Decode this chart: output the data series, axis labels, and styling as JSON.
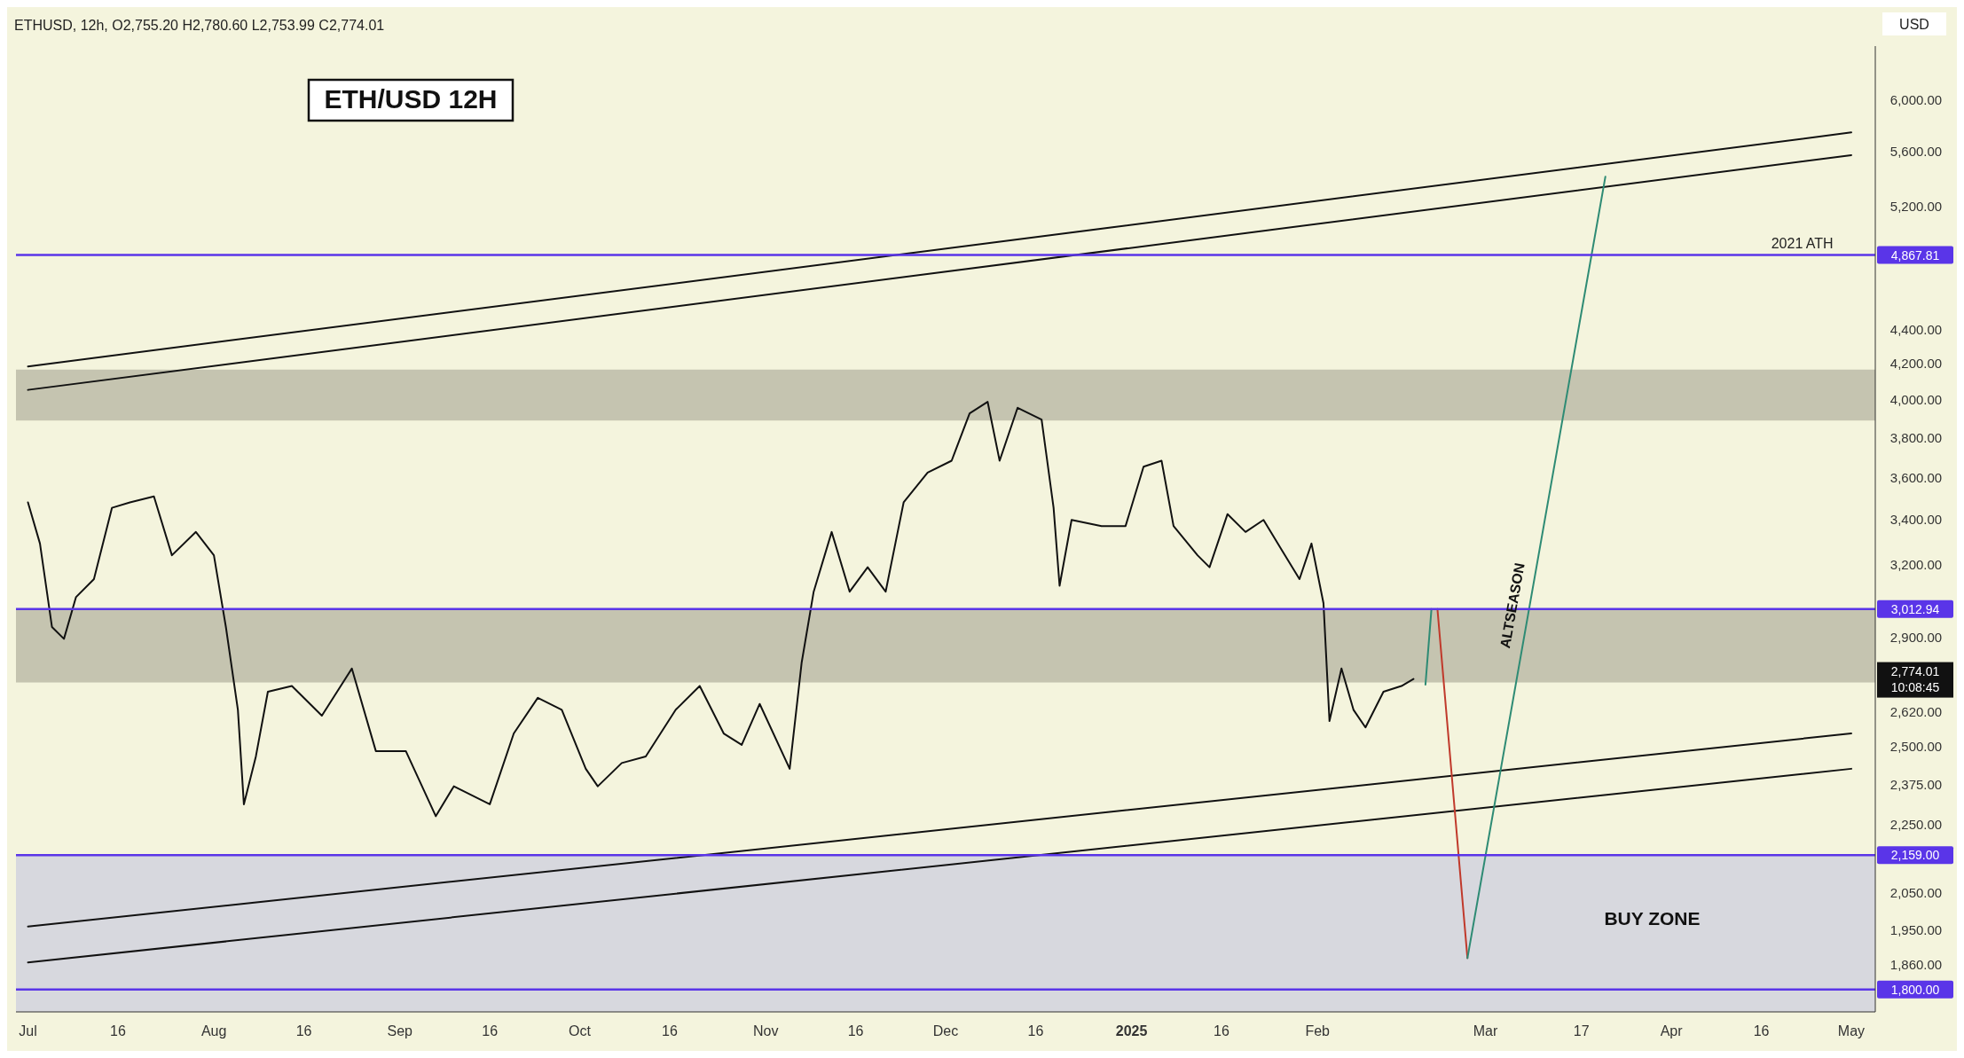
{
  "chart_data": {
    "type": "line",
    "title": "ETH/USD 12H",
    "subtitle": "ETHUSD, 12h, O2,755.20 H2,780.60 L2,753.99 C2,774.01",
    "ylabel": "USD",
    "log": true,
    "grid": false,
    "marker": "none",
    "line_style": "solid",
    "xlim": [
      "2024-06-29",
      "2025-05-05"
    ],
    "xticks": [
      {
        "value": "2024-07-01",
        "label": "Jul"
      },
      {
        "value": "2024-07-16",
        "label": "16"
      },
      {
        "value": "2024-08-01",
        "label": "Aug"
      },
      {
        "value": "2024-08-16",
        "label": "16"
      },
      {
        "value": "2024-09-01",
        "label": "Sep"
      },
      {
        "value": "2024-09-16",
        "label": "16"
      },
      {
        "value": "2024-10-01",
        "label": "Oct"
      },
      {
        "value": "2024-10-16",
        "label": "16"
      },
      {
        "value": "2024-11-01",
        "label": "Nov"
      },
      {
        "value": "2024-11-16",
        "label": "16"
      },
      {
        "value": "2024-12-01",
        "label": "Dec"
      },
      {
        "value": "2024-12-16",
        "label": "16"
      },
      {
        "value": "2025-01-01",
        "label": "2025"
      },
      {
        "value": "2025-01-16",
        "label": "16"
      },
      {
        "value": "2025-02-01",
        "label": "Feb"
      },
      {
        "value": "2025-03-01",
        "label": "Mar"
      },
      {
        "value": "2025-03-17",
        "label": "17"
      },
      {
        "value": "2025-04-01",
        "label": "Apr"
      },
      {
        "value": "2025-04-16",
        "label": "16"
      },
      {
        "value": "2025-05-01",
        "label": "May"
      }
    ],
    "ylim": [
      1746,
      6460
    ],
    "yticks": [
      {
        "value": 1860,
        "label": "1,860.00"
      },
      {
        "value": 1950,
        "label": "1,950.00"
      },
      {
        "value": 2050,
        "label": "2,050.00"
      },
      {
        "value": 2250,
        "label": "2,250.00"
      },
      {
        "value": 2375,
        "label": "2,375.00"
      },
      {
        "value": 2500,
        "label": "2,500.00"
      },
      {
        "value": 2620,
        "label": "2,620.00"
      },
      {
        "value": 2900,
        "label": "2,900.00"
      },
      {
        "value": 3200,
        "label": "3,200.00"
      },
      {
        "value": 3400,
        "label": "3,400.00"
      },
      {
        "value": 3600,
        "label": "3,600.00"
      },
      {
        "value": 3800,
        "label": "3,800.00"
      },
      {
        "value": 4000,
        "label": "4,000.00"
      },
      {
        "value": 4200,
        "label": "4,200.00"
      },
      {
        "value": 4400,
        "label": "4,400.00"
      },
      {
        "value": 5200,
        "label": "5,200.00"
      },
      {
        "value": 5600,
        "label": "5,600.00"
      },
      {
        "value": 6000,
        "label": "6,000.00"
      }
    ],
    "bands": [
      {
        "axis": "y",
        "from": 3890,
        "to": 4168,
        "label": null,
        "color": "#c5c4b0"
      },
      {
        "axis": "y",
        "from": 2728,
        "to": 3010,
        "label": null,
        "color": "#c5c4b0"
      },
      {
        "axis": "y",
        "from": 1746,
        "to": 2159,
        "label": "BUY ZONE",
        "color": "#d7d8de"
      }
    ],
    "ref_lines": [
      {
        "axis": "y",
        "value": 4867.81,
        "label": "4,867.81",
        "color": "#5a35e8"
      },
      {
        "axis": "y",
        "value": 3012.94,
        "label": "3,012.94",
        "color": "#5a35e8"
      },
      {
        "axis": "y",
        "value": 2159,
        "label": "2,159.00",
        "color": "#5a35e8"
      },
      {
        "axis": "y",
        "value": 1800,
        "label": "1,800.00",
        "color": "#5a35e8"
      }
    ],
    "annotations": [
      {
        "text": "2021 ATH",
        "x": "2025-04-28",
        "y": 4867.81
      },
      "2,774.01",
      "10:08:45",
      "ALTSEASON"
    ],
    "series": [
      {
        "color": "#111111",
        "x": [
          "2024-07-01",
          "2024-07-03",
          "2024-07-05",
          "2024-07-07",
          "2024-07-09",
          "2024-07-12",
          "2024-07-15",
          "2024-07-18",
          "2024-07-22",
          "2024-07-25",
          "2024-07-29",
          "2024-08-01",
          "2024-08-03",
          "2024-08-05",
          "2024-08-06",
          "2024-08-08",
          "2024-08-10",
          "2024-08-14",
          "2024-08-19",
          "2024-08-24",
          "2024-08-28",
          "2024-09-02",
          "2024-09-07",
          "2024-09-10",
          "2024-09-16",
          "2024-09-20",
          "2024-09-24",
          "2024-09-28",
          "2024-10-02",
          "2024-10-04",
          "2024-10-08",
          "2024-10-12",
          "2024-10-17",
          "2024-10-21",
          "2024-10-25",
          "2024-10-28",
          "2024-10-31",
          "2024-11-05",
          "2024-11-07",
          "2024-11-09",
          "2024-11-12",
          "2024-11-15",
          "2024-11-18",
          "2024-11-21",
          "2024-11-24",
          "2024-11-28",
          "2024-12-02",
          "2024-12-05",
          "2024-12-08",
          "2024-12-10",
          "2024-12-13",
          "2024-12-17",
          "2024-12-19",
          "2024-12-20",
          "2024-12-22",
          "2024-12-27",
          "2024-12-31",
          "2025-01-03",
          "2025-01-06",
          "2025-01-08",
          "2025-01-12",
          "2025-01-14",
          "2025-01-17",
          "2025-01-20",
          "2025-01-23",
          "2025-01-26",
          "2025-01-29",
          "2025-01-31",
          "2025-02-02",
          "2025-02-03",
          "2025-02-05",
          "2025-02-07",
          "2025-02-09",
          "2025-02-12",
          "2025-02-15",
          "2025-02-17"
        ],
        "values": [
          3482,
          3293,
          2941,
          2894,
          3062,
          3138,
          3456,
          3482,
          3510,
          3241,
          3345,
          3241,
          2941,
          2629,
          2313,
          2468,
          2694,
          2715,
          2608,
          2780,
          2486,
          2486,
          2276,
          2370,
          2313,
          2546,
          2672,
          2629,
          2427,
          2370,
          2446,
          2468,
          2629,
          2715,
          2546,
          2507,
          2650,
          2427,
          2803,
          3085,
          3345,
          3085,
          3189,
          3085,
          3482,
          3625,
          3684,
          3928,
          3990,
          3684,
          3958,
          3895,
          3456,
          3110,
          3400,
          3372,
          3372,
          3654,
          3684,
          3372,
          3241,
          3189,
          3427,
          3345,
          3400,
          3266,
          3138,
          3293,
          3037,
          2589,
          2780,
          2629,
          2567,
          2694,
          2715,
          2741
        ]
      },
      {
        "color": "#111111",
        "x": [
          "2024-07-01",
          "2025-05-01"
        ],
        "values": [
          4186,
          5747
        ]
      },
      {
        "color": "#111111",
        "x": [
          "2024-07-01",
          "2025-05-01"
        ],
        "values": [
          4055,
          5573
        ]
      },
      {
        "color": "#111111",
        "x": [
          "2024-07-01",
          "2025-05-01"
        ],
        "values": [
          1960,
          2546
        ]
      },
      {
        "color": "#111111",
        "x": [
          "2024-07-01",
          "2025-05-01"
        ],
        "values": [
          1867,
          2427
        ]
      },
      {
        "color": "#2e8b74",
        "x": [
          "2025-02-19",
          "2025-02-20"
        ],
        "values": [
          2720,
          3013
        ]
      },
      {
        "color": "#c0392b",
        "x": [
          "2025-02-21",
          "2025-02-26"
        ],
        "values": [
          3013,
          1878
        ]
      },
      {
        "color": "#2e8b74",
        "x": [
          "2025-02-26",
          "2025-03-21"
        ],
        "values": [
          1878,
          5413
        ]
      }
    ]
  }
}
